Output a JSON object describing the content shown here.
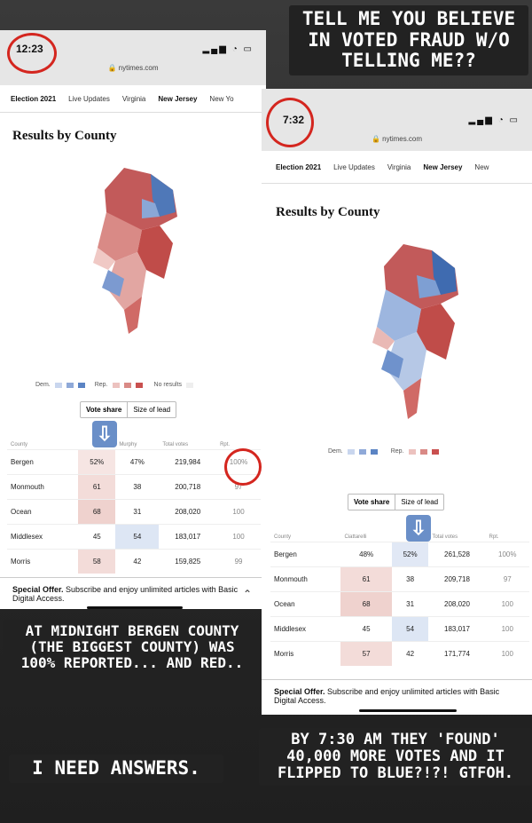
{
  "captions": {
    "top_right": [
      "TELL ME YOU BELIEVE",
      "IN VOTED FRAUD W/O",
      "TELLING ME??"
    ],
    "bottom_left": [
      "AT MIDNIGHT BERGEN COUNTY",
      "(THE BIGGEST COUNTY) WAS",
      "100% REPORTED... AND RED.."
    ],
    "answers": "I NEED ANSWERS.",
    "bottom_right": [
      "BY 7:30 AM THEY 'FOUND'",
      "40,000 MORE VOTES AND IT",
      "FLIPPED TO BLUE?!?! GTFOH."
    ]
  },
  "left": {
    "time": "12:23",
    "url": "nytimes.com",
    "nav": [
      "Election 2021",
      "Live Updates",
      "Virginia",
      "New Jersey",
      "New Yo"
    ],
    "section_title": "Results by County",
    "legend": {
      "dem": "Dem.",
      "rep": "Rep.",
      "none": "No results"
    },
    "toggle": [
      "Vote share",
      "Size of lead"
    ],
    "headers": [
      "County",
      "",
      "Murphy",
      "Total votes",
      "Rpt."
    ],
    "rows": [
      [
        "Bergen",
        "52%",
        "47%",
        "219,984",
        "100%"
      ],
      [
        "Monmouth",
        "61",
        "38",
        "200,718",
        "97"
      ],
      [
        "Ocean",
        "68",
        "31",
        "208,020",
        "100"
      ],
      [
        "Middlesex",
        "45",
        "54",
        "183,017",
        "100"
      ],
      [
        "Morris",
        "58",
        "42",
        "159,825",
        "99"
      ]
    ],
    "offer": {
      "bold": "Special Offer.",
      "text": " Subscribe and enjoy unlimited articles with Basic Digital Access."
    }
  },
  "right": {
    "time": "7:32",
    "url": "nytimes.com",
    "nav": [
      "Election 2021",
      "Live Updates",
      "Virginia",
      "New Jersey",
      "New"
    ],
    "section_title": "Results by County",
    "legend": {
      "dem": "Dem.",
      "rep": "Rep."
    },
    "toggle": [
      "Vote share",
      "Size of lead"
    ],
    "headers": [
      "County",
      "Ciattarelli",
      "",
      "Total votes",
      "Rpt."
    ],
    "rows": [
      [
        "Bergen",
        "48%",
        "52%",
        "261,528",
        "100%"
      ],
      [
        "Monmouth",
        "61",
        "38",
        "209,718",
        "97"
      ],
      [
        "Ocean",
        "68",
        "31",
        "208,020",
        "100"
      ],
      [
        "Middlesex",
        "45",
        "54",
        "183,017",
        "100"
      ],
      [
        "Morris",
        "57",
        "42",
        "171,774",
        "100"
      ]
    ],
    "offer": {
      "bold": "Special Offer.",
      "text": " Subscribe and enjoy unlimited articles with Basic Digital Access."
    }
  },
  "colors": {
    "dem": "#5b84c4",
    "rep": "#c9504f",
    "ring": "#d4261f"
  }
}
